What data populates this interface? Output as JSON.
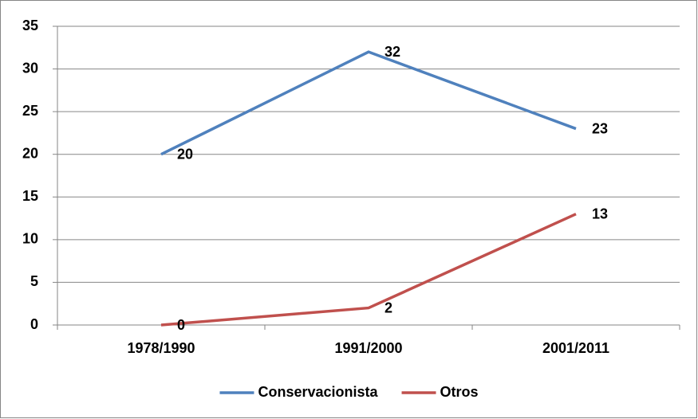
{
  "chart_data": {
    "type": "line",
    "categories": [
      "1978/1990",
      "1991/2000",
      "2001/2011"
    ],
    "series": [
      {
        "name": "Conservacionista",
        "color": "#4f81bd",
        "values": [
          20,
          32,
          23
        ]
      },
      {
        "name": "Otros",
        "color": "#c0504d",
        "values": [
          0,
          2,
          13
        ]
      }
    ],
    "ylim": [
      0,
      35
    ],
    "yticks": [
      0,
      5,
      10,
      15,
      20,
      25,
      30,
      35
    ],
    "grid": true,
    "legend": "bottom"
  }
}
